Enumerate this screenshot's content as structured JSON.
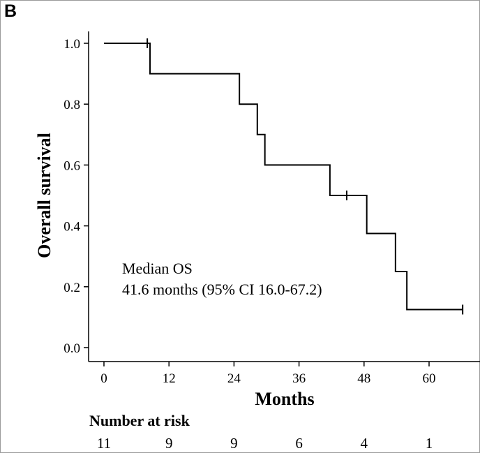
{
  "panel_label": "B",
  "chart_data": {
    "type": "line",
    "subtype": "kaplan-meier",
    "xlabel": "Months",
    "ylabel": "Overall survival",
    "xlim": [
      0,
      68
    ],
    "ylim": [
      0,
      1
    ],
    "x_ticks": [
      0,
      12,
      24,
      36,
      48,
      60
    ],
    "x_tick_labels": [
      "0",
      "12",
      "24",
      "36",
      "48",
      "60"
    ],
    "y_ticks": [
      0,
      0.2,
      0.4,
      0.6,
      0.8,
      1.0
    ],
    "y_tick_labels": [
      "0.0",
      "0.2",
      "0.4",
      "0.6",
      "0.8",
      "1.0"
    ],
    "grid": false,
    "series": [
      {
        "steps": [
          {
            "x": 0,
            "y": 1.0
          },
          {
            "x": 8.5,
            "y": 0.9
          },
          {
            "x": 25,
            "y": 0.8
          },
          {
            "x": 28.3,
            "y": 0.7
          },
          {
            "x": 29.7,
            "y": 0.6
          },
          {
            "x": 41.7,
            "y": 0.5
          },
          {
            "x": 48.5,
            "y": 0.375
          },
          {
            "x": 53.8,
            "y": 0.25
          },
          {
            "x": 55.9,
            "y": 0.125
          }
        ],
        "end_x": 66.2,
        "censored": [
          {
            "x": 8.0,
            "y": 1.0
          },
          {
            "x": 44.8,
            "y": 0.5
          },
          {
            "x": 66.2,
            "y": 0.125
          }
        ]
      }
    ],
    "annotations": [
      "Median OS",
      "41.6 months (95% CI 16.0-67.2)"
    ]
  },
  "risk_table": {
    "title": "Number at risk",
    "times": [
      0,
      12,
      24,
      36,
      48,
      60
    ],
    "counts": [
      "11",
      "9",
      "9",
      "6",
      "4",
      "1"
    ]
  }
}
